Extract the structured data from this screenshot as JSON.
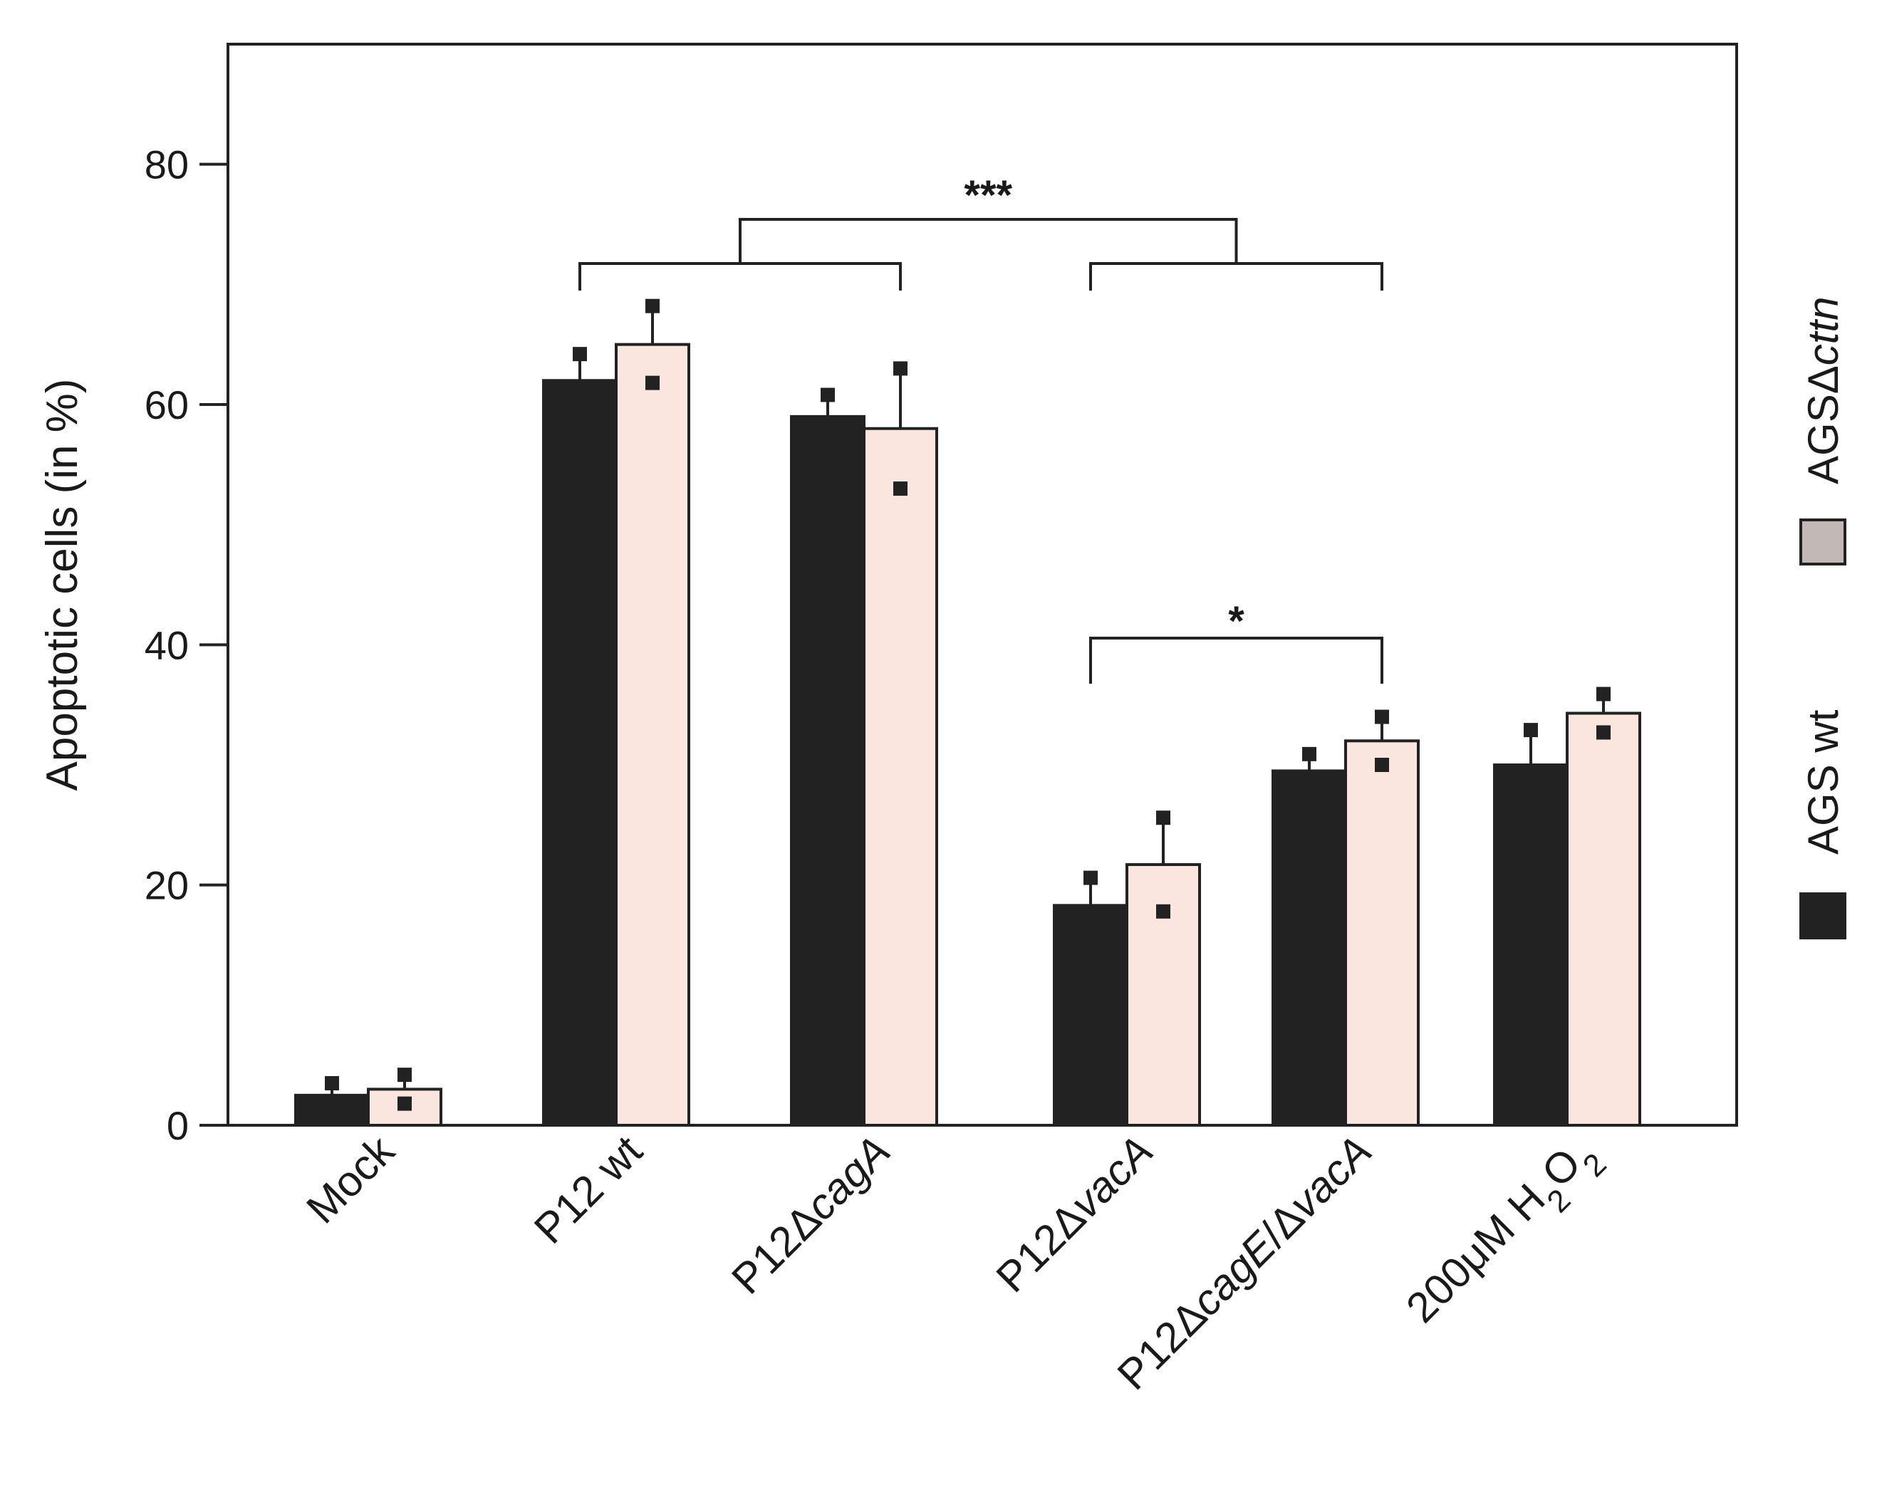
{
  "chart_data": {
    "type": "bar",
    "ylabel": "Apoptotic cells (in %)",
    "xlabel": "",
    "ylim": [
      0,
      90
    ],
    "yticks": [
      0,
      20,
      40,
      60,
      80
    ],
    "grid": false,
    "legend_position": "right, rotated vertical",
    "categories": [
      {
        "prefix": "Mock",
        "parts": []
      },
      {
        "prefix": "P12 wt",
        "parts": []
      },
      {
        "prefix": "P12Δ",
        "parts": [
          {
            "t": "cagA",
            "i": true
          }
        ]
      },
      {
        "prefix": "P12Δ",
        "parts": [
          {
            "t": "vacA",
            "i": true
          }
        ]
      },
      {
        "prefix": "P12Δ",
        "parts": [
          {
            "t": "cagE",
            "i": true
          },
          {
            "t": "/Δ",
            "i": false
          },
          {
            "t": "vacA",
            "i": true
          }
        ]
      },
      {
        "prefix": "200μM H",
        "parts": [
          {
            "t": "2",
            "sub": true
          },
          {
            "t": "O",
            "i": false
          },
          {
            "t": "2",
            "sub": true
          }
        ]
      }
    ],
    "series": [
      {
        "name": "AGS wt",
        "color": "#222222",
        "values": [
          2.5,
          62,
          59,
          18.3,
          29.5,
          30
        ],
        "errors": [
          1.0,
          2.2,
          1.8,
          2.3,
          1.4,
          2.9
        ]
      },
      {
        "name": "AGSΔcttn",
        "name_prefix": "AGSΔ",
        "name_italic": "cttn",
        "color": "#fae6df",
        "values": [
          3,
          65,
          58,
          21.7,
          32,
          34.3
        ],
        "errors": [
          1.2,
          3.2,
          5.0,
          3.9,
          2.0,
          1.6
        ]
      }
    ],
    "significance": [
      {
        "label": "***",
        "groups": [
          [
            1,
            2
          ],
          [
            3,
            4
          ]
        ]
      },
      {
        "label": "*",
        "from": 3,
        "to": 4
      }
    ]
  }
}
